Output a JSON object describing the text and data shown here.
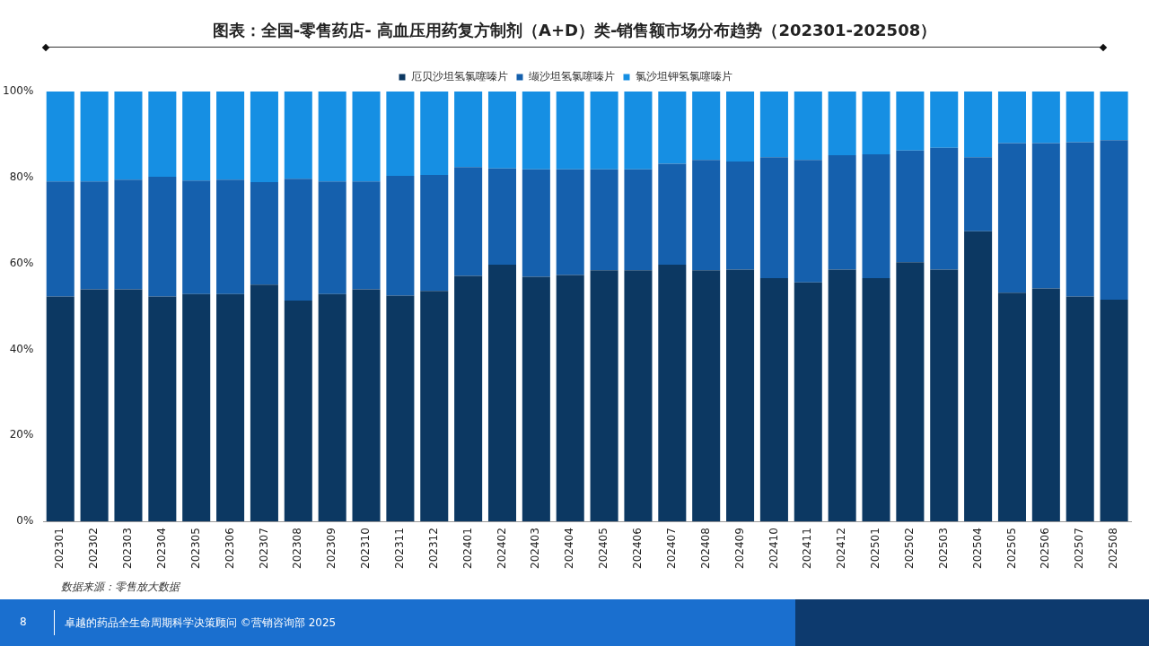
{
  "chart_data": {
    "type": "bar",
    "stacked": true,
    "title": "图表：全国-零售药店- 高血压用药复方制剂（A+D）类-销售额市场分布趋势（202301-202508）",
    "categories": [
      "202301",
      "202302",
      "202303",
      "202304",
      "202305",
      "202306",
      "202307",
      "202308",
      "202309",
      "202310",
      "202311",
      "202312",
      "202401",
      "202402",
      "202403",
      "202404",
      "202405",
      "202406",
      "202407",
      "202408",
      "202409",
      "202410",
      "202411",
      "202412",
      "202501",
      "202502",
      "202503",
      "202504",
      "202505",
      "202506",
      "202507",
      "202508"
    ],
    "series": [
      {
        "name": "厄贝沙坦氢氯噻嗪片",
        "color": "#0c3862",
        "values": [
          52.3,
          54.0,
          54.0,
          52.3,
          52.9,
          52.9,
          55.1,
          51.4,
          52.9,
          54.0,
          52.5,
          53.6,
          57.1,
          59.7,
          56.9,
          57.3,
          58.4,
          58.4,
          59.7,
          58.4,
          58.6,
          56.6,
          55.6,
          58.6,
          56.6,
          60.3,
          58.6,
          67.5,
          53.2,
          54.2,
          52.3,
          51.6
        ]
      },
      {
        "name": "缬沙坦氢氯噻嗪片",
        "color": "#1560ad",
        "values": [
          26.8,
          25.1,
          25.5,
          27.9,
          26.4,
          26.6,
          23.8,
          28.3,
          26.2,
          25.1,
          27.9,
          27.0,
          25.3,
          22.4,
          25.0,
          24.6,
          23.5,
          23.5,
          23.5,
          25.7,
          25.1,
          28.1,
          28.5,
          26.6,
          28.8,
          26.0,
          28.3,
          17.2,
          34.8,
          33.8,
          35.9,
          37.1
        ]
      },
      {
        "name": "氯沙坦钾氢氯噻嗪片",
        "color": "#168fe3",
        "values": [
          20.9,
          20.9,
          20.5,
          19.8,
          20.7,
          20.5,
          21.1,
          20.3,
          20.9,
          20.9,
          19.6,
          19.4,
          17.6,
          17.9,
          18.1,
          18.1,
          18.1,
          18.1,
          16.8,
          15.9,
          16.3,
          15.3,
          15.9,
          14.8,
          14.6,
          13.7,
          13.1,
          15.3,
          12.0,
          12.0,
          11.8,
          11.3
        ]
      }
    ],
    "ylim": [
      0,
      100
    ],
    "yticks": [
      {
        "value": 0,
        "label": "0%"
      },
      {
        "value": 20,
        "label": "20%"
      },
      {
        "value": 40,
        "label": "40%"
      },
      {
        "value": 60,
        "label": "60%"
      },
      {
        "value": 80,
        "label": "80%"
      },
      {
        "value": 100,
        "label": "100%"
      }
    ],
    "grid": false,
    "legend": "top",
    "annotations": [
      "数据来源：零售放大数据",
      "8",
      "卓越的药品全生命周期科学决策顾问 ©营销咨询部 2025"
    ]
  }
}
